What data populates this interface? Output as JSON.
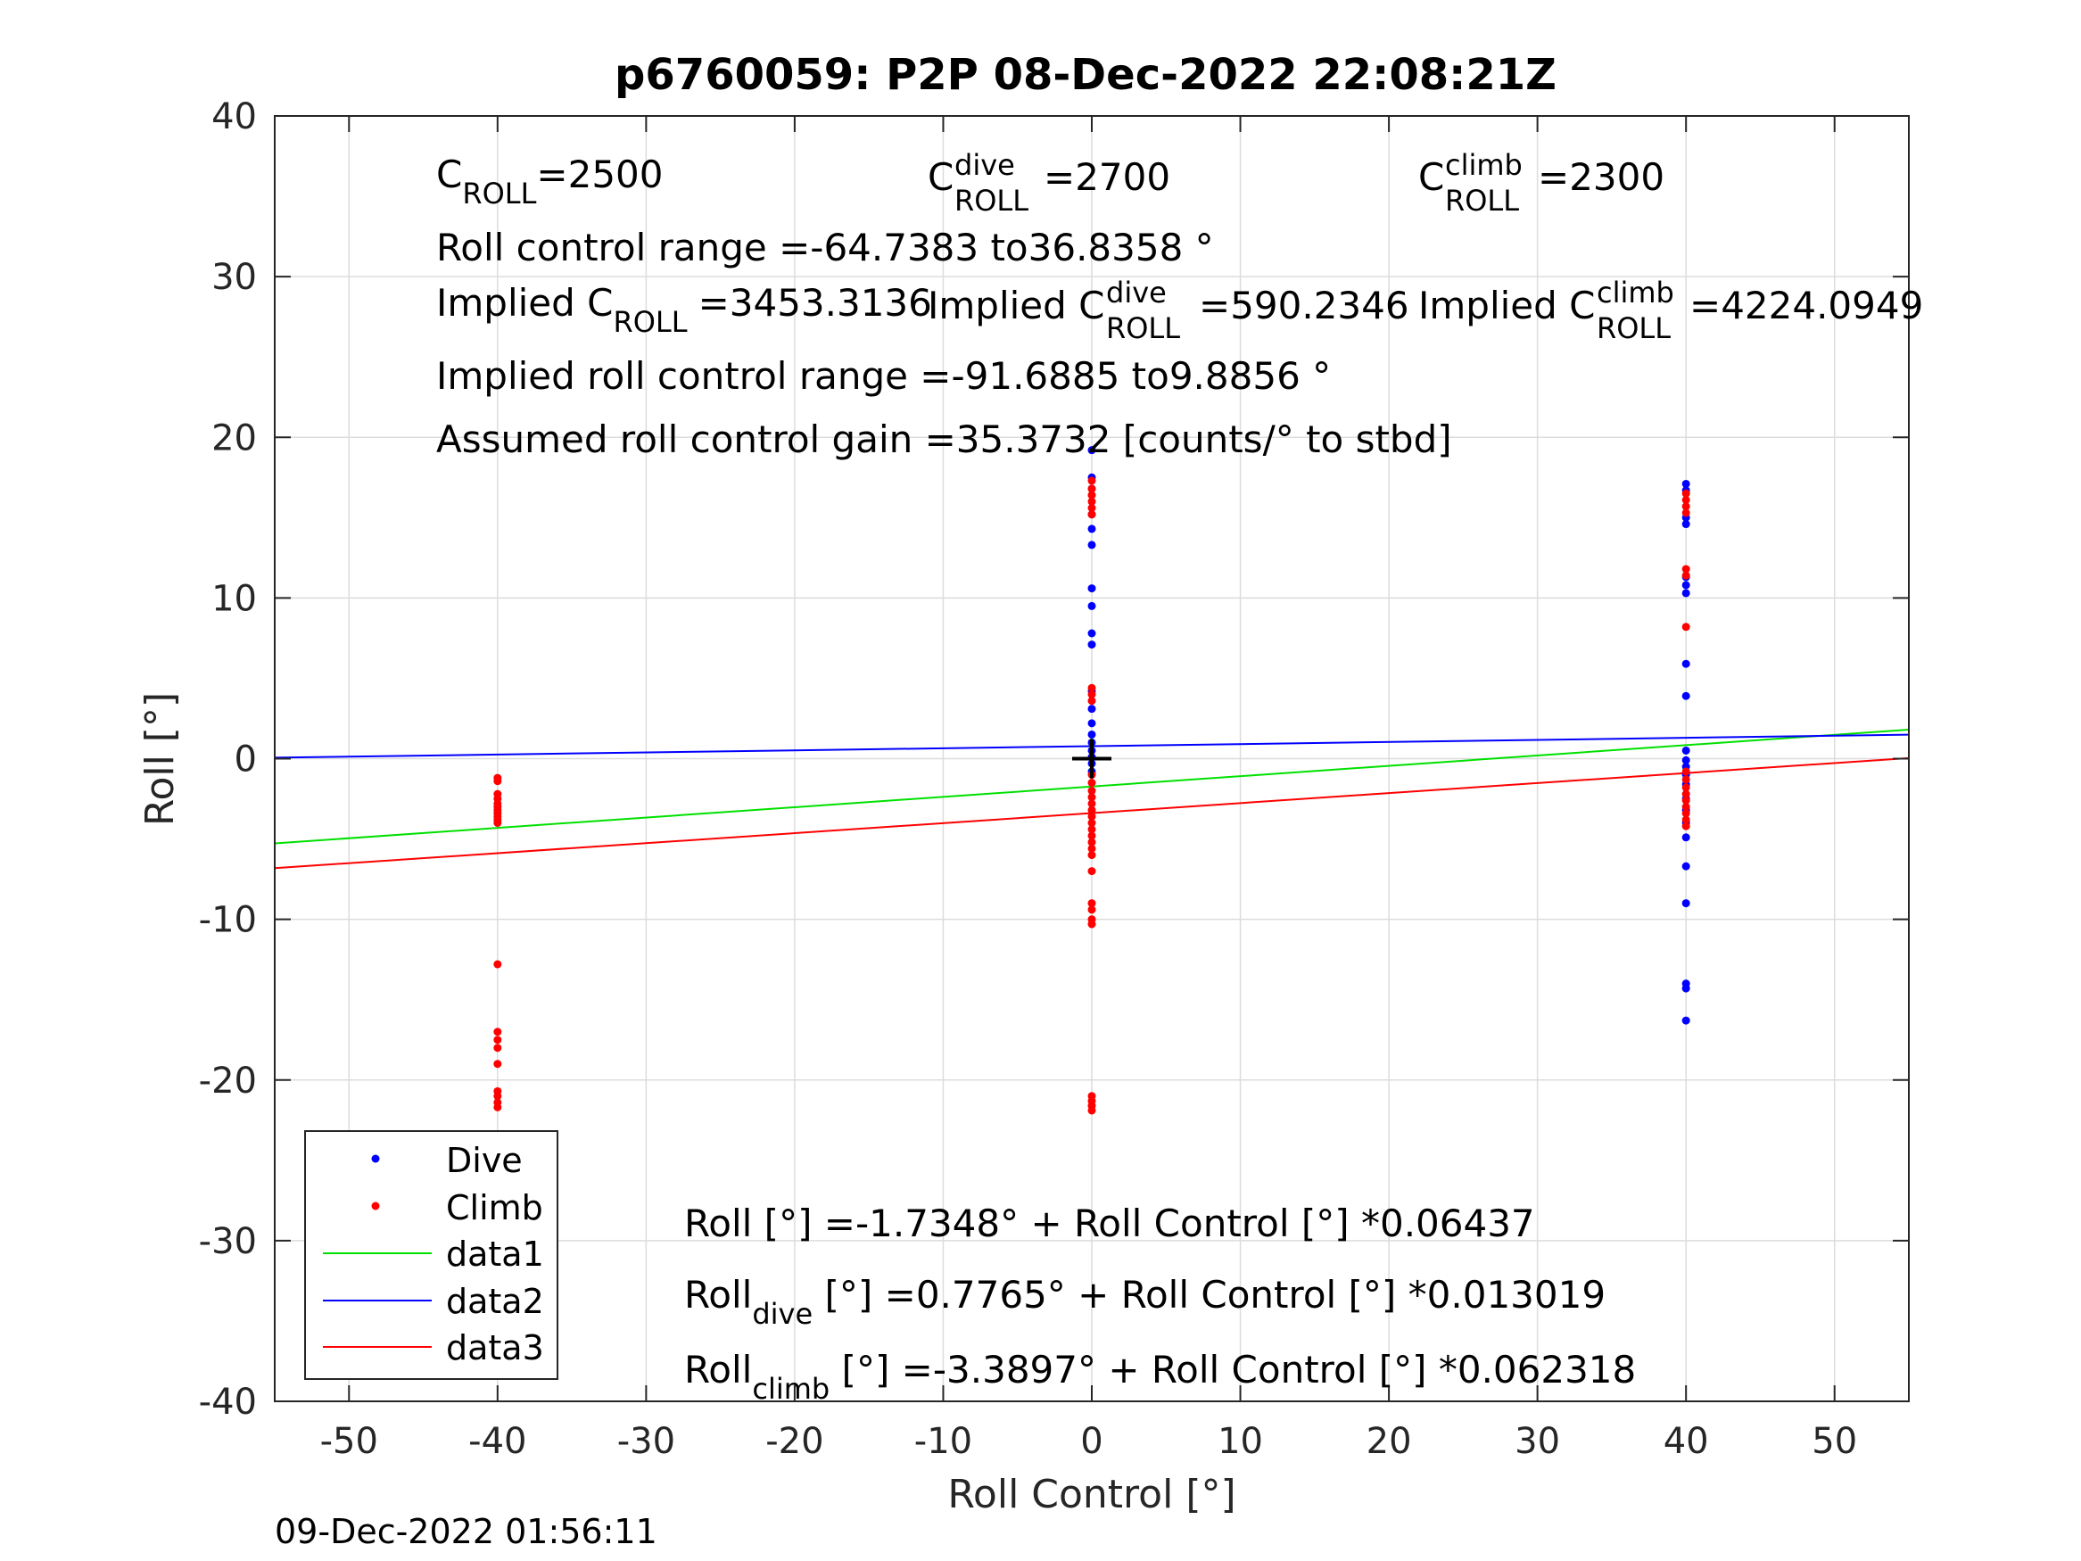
{
  "timestamp": "09-Dec-2022 01:56:11",
  "colors": {
    "dive": "#0000ff",
    "climb": "#ff0000",
    "data1": "#00e000",
    "data2": "#0000ff",
    "data3": "#ff0000",
    "axis": "#262626",
    "grid": "#dcdcdc"
  },
  "chart_data": {
    "type": "scatter",
    "title": "p6760059: P2P 08-Dec-2022 22:08:21Z",
    "xlabel": "Roll Control [°]",
    "ylabel": "Roll [°]",
    "xlim": [
      -55,
      55
    ],
    "ylim": [
      -40,
      40
    ],
    "grid": true,
    "xticks": [
      -50,
      -40,
      -30,
      -20,
      -10,
      0,
      10,
      20,
      30,
      40,
      50
    ],
    "yticks": [
      -40,
      -30,
      -20,
      -10,
      0,
      10,
      20,
      30,
      40
    ],
    "legend_position": "bottom-left",
    "scatter_series": [
      {
        "name": "Dive",
        "color": "#0000ff",
        "points": [
          [
            0,
            19.2
          ],
          [
            0,
            17.5
          ],
          [
            0,
            16.8
          ],
          [
            0,
            15.2
          ],
          [
            0,
            14.3
          ],
          [
            0,
            13.3
          ],
          [
            0,
            10.6
          ],
          [
            0,
            9.5
          ],
          [
            0,
            7.8
          ],
          [
            0,
            7.1
          ],
          [
            0,
            4.2
          ],
          [
            0,
            3.1
          ],
          [
            0,
            2.2
          ],
          [
            0,
            1.5
          ],
          [
            0,
            1.0
          ],
          [
            0,
            0.5
          ],
          [
            0,
            0.1
          ],
          [
            0,
            -0.3
          ],
          [
            0,
            -0.8
          ],
          [
            40,
            17.1
          ],
          [
            40,
            16.7
          ],
          [
            40,
            15.0
          ],
          [
            40,
            14.6
          ],
          [
            40,
            11.3
          ],
          [
            40,
            10.8
          ],
          [
            40,
            10.3
          ],
          [
            40,
            5.9
          ],
          [
            40,
            3.9
          ],
          [
            40,
            0.5
          ],
          [
            40,
            -0.1
          ],
          [
            40,
            -0.5
          ],
          [
            40,
            -1.0
          ],
          [
            40,
            -1.6
          ],
          [
            40,
            -2.5
          ],
          [
            40,
            -3.2
          ],
          [
            40,
            -4.0
          ],
          [
            40,
            -4.9
          ],
          [
            40,
            -6.7
          ],
          [
            40,
            -9.0
          ],
          [
            40,
            -14.0
          ],
          [
            40,
            -14.3
          ],
          [
            40,
            -16.3
          ]
        ]
      },
      {
        "name": "Climb",
        "color": "#ff0000",
        "points": [
          [
            -40,
            -1.2
          ],
          [
            -40,
            -1.4
          ],
          [
            -40,
            -2.2
          ],
          [
            -40,
            -2.5
          ],
          [
            -40,
            -2.8
          ],
          [
            -40,
            -3.0
          ],
          [
            -40,
            -3.2
          ],
          [
            -40,
            -3.4
          ],
          [
            -40,
            -3.6
          ],
          [
            -40,
            -3.8
          ],
          [
            -40,
            -4.0
          ],
          [
            -40,
            -12.8
          ],
          [
            -40,
            -17.0
          ],
          [
            -40,
            -17.5
          ],
          [
            -40,
            -18.0
          ],
          [
            -40,
            -19.0
          ],
          [
            -40,
            -20.7
          ],
          [
            -40,
            -21.0
          ],
          [
            -40,
            -21.4
          ],
          [
            -40,
            -21.7
          ],
          [
            0,
            17.3
          ],
          [
            0,
            16.8
          ],
          [
            0,
            16.4
          ],
          [
            0,
            16.0
          ],
          [
            0,
            15.6
          ],
          [
            0,
            15.2
          ],
          [
            0,
            4.4
          ],
          [
            0,
            4.0
          ],
          [
            0,
            3.6
          ],
          [
            0,
            -1.0
          ],
          [
            0,
            -1.5
          ],
          [
            0,
            -2.0
          ],
          [
            0,
            -2.4
          ],
          [
            0,
            -2.8
          ],
          [
            0,
            -3.2
          ],
          [
            0,
            -3.6
          ],
          [
            0,
            -4.0
          ],
          [
            0,
            -4.4
          ],
          [
            0,
            -4.8
          ],
          [
            0,
            -5.2
          ],
          [
            0,
            -5.6
          ],
          [
            0,
            -6.0
          ],
          [
            0,
            -7.0
          ],
          [
            0,
            -9.0
          ],
          [
            0,
            -9.4
          ],
          [
            0,
            -10.0
          ],
          [
            0,
            -10.3
          ],
          [
            0,
            -21.0
          ],
          [
            0,
            -21.3
          ],
          [
            0,
            -21.6
          ],
          [
            0,
            -21.9
          ],
          [
            40,
            16.5
          ],
          [
            40,
            16.1
          ],
          [
            40,
            15.7
          ],
          [
            40,
            15.3
          ],
          [
            40,
            11.8
          ],
          [
            40,
            11.4
          ],
          [
            40,
            8.2
          ],
          [
            40,
            -0.8
          ],
          [
            40,
            -1.3
          ],
          [
            40,
            -1.8
          ],
          [
            40,
            -2.2
          ],
          [
            40,
            -2.6
          ],
          [
            40,
            -3.0
          ],
          [
            40,
            -3.4
          ],
          [
            40,
            -3.8
          ],
          [
            40,
            -4.2
          ]
        ]
      }
    ],
    "line_series": [
      {
        "name": "data1",
        "color": "#00e000",
        "intercept": -1.7348,
        "slope": 0.06437
      },
      {
        "name": "data2",
        "color": "#0000ff",
        "intercept": 0.7765,
        "slope": 0.013019
      },
      {
        "name": "data3",
        "color": "#ff0000",
        "intercept": -3.3897,
        "slope": 0.062318
      }
    ],
    "marker": {
      "x": 0,
      "y": 0,
      "symbol": "+"
    },
    "annotations": {
      "c_roll": {
        "base": "C",
        "sub": "ROLL",
        "value": "=2500"
      },
      "c_roll_dive": {
        "base": "C",
        "sup": "dive",
        "sub": "ROLL",
        "value": "=2700"
      },
      "c_roll_climb": {
        "base": "C",
        "sup": "climb",
        "sub": "ROLL",
        "value": "=2300"
      },
      "roll_control_range": "Roll control range =-64.7383 to36.8358 °",
      "implied_c_roll": {
        "prefix": "Implied C",
        "sub": "ROLL",
        "value": "=3453.3136"
      },
      "implied_c_roll_dive": {
        "prefix": "Implied C",
        "sup": "dive",
        "sub": "ROLL",
        "value": "=590.2346"
      },
      "implied_c_roll_climb": {
        "prefix": "Implied C",
        "sup": "climb",
        "sub": "ROLL",
        "value": "=4224.0949"
      },
      "implied_roll_control_range": "Implied roll control range =-91.6885 to9.8856 °",
      "assumed_gain": "Assumed roll control gain =35.3732 [counts/° to stbd]",
      "fit_all": "Roll [°] =-1.7348° + Roll Control [°] *0.06437",
      "fit_dive": {
        "base": "Roll",
        "sub": "dive",
        "rest": " [°] =0.7765° + Roll Control [°] *0.013019"
      },
      "fit_climb": {
        "base": "Roll",
        "sub": "climb",
        "rest": " [°] =-3.3897° + Roll Control [°] *0.062318"
      }
    }
  }
}
